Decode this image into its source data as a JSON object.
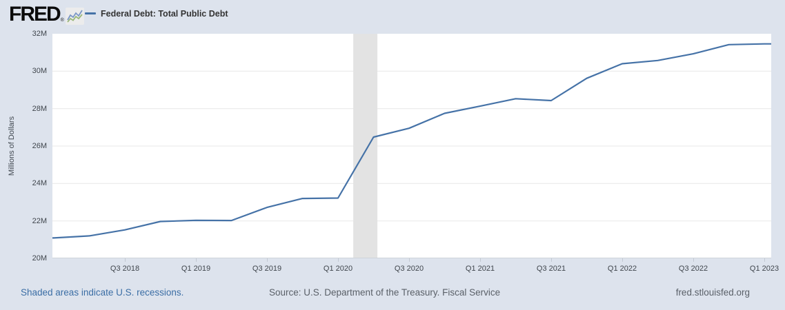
{
  "header": {
    "logo_text": "FRED",
    "logo_reg": "®",
    "legend_label": "Federal Debt: Total Public Debt"
  },
  "footer": {
    "recessions_note": "Shaded areas indicate U.S. recessions.",
    "source": "Source: U.S. Department of the Treasury. Fiscal Service",
    "site": "fred.stlouisfed.org"
  },
  "colors": {
    "background": "#dde3ed",
    "plot_background": "#ffffff",
    "series_line": "#4572a7",
    "recession_band": "#e3e3e3",
    "gridline": "#e7e7e7",
    "axis_line": "#cfd3d9",
    "axis_text": "#3f454c",
    "footer_link": "#3b6ea5",
    "footer_text": "#5a6068"
  },
  "chart_data": {
    "type": "line",
    "title": "Federal Debt: Total Public Debt",
    "ylabel": "Millions of Dollars",
    "xlabel": "",
    "grid": "horizontal-only",
    "legend_position": "top-left header",
    "frequency": "quarterly",
    "categories": [
      "Q1 2018",
      "Q2 2018",
      "Q3 2018",
      "Q4 2018",
      "Q1 2019",
      "Q2 2019",
      "Q3 2019",
      "Q4 2019",
      "Q1 2020",
      "Q2 2020",
      "Q3 2020",
      "Q4 2020",
      "Q1 2021",
      "Q2 2021",
      "Q3 2021",
      "Q4 2021",
      "Q1 2022",
      "Q2 2022",
      "Q3 2022",
      "Q4 2022",
      "Q1 2023"
    ],
    "values": [
      21090000,
      21200000,
      21520000,
      21970000,
      22030000,
      22020000,
      22720000,
      23200000,
      23220000,
      26480000,
      26950000,
      27750000,
      28130000,
      28530000,
      28430000,
      29620000,
      30400000,
      30570000,
      30930000,
      31420000,
      31460000
    ],
    "ylim": [
      20000000,
      32000000
    ],
    "y_tick_labels": [
      "20M",
      "22M",
      "24M",
      "26M",
      "28M",
      "30M",
      "32M"
    ],
    "y_tick_values": [
      20000000,
      22000000,
      24000000,
      26000000,
      28000000,
      30000000,
      32000000
    ],
    "x_tick_labels": [
      "Q3 2018",
      "Q1 2019",
      "Q3 2019",
      "Q1 2020",
      "Q3 2020",
      "Q1 2021",
      "Q3 2021",
      "Q1 2022",
      "Q3 2022",
      "Q1 2023"
    ],
    "recession_band": {
      "start": "2020-02",
      "end": "2020-04",
      "start_quarter_index": 8.43,
      "end_quarter_index": 9.11
    }
  }
}
